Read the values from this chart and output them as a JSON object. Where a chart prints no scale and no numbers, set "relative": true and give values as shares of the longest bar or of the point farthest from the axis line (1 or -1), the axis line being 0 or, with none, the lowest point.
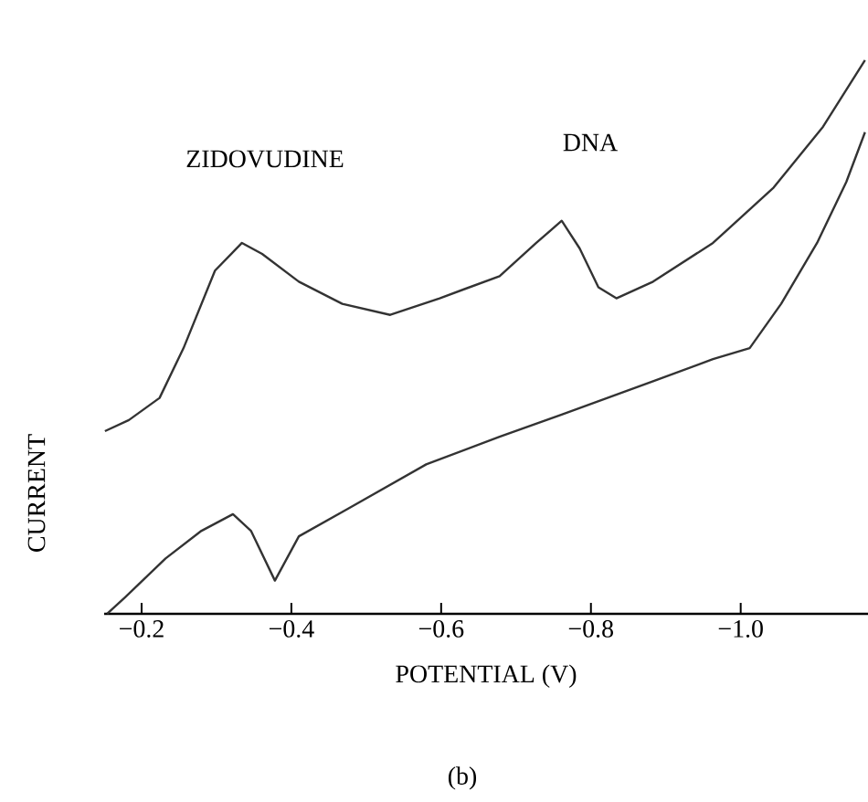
{
  "chart_data": {
    "type": "line",
    "relative": true,
    "xlabel": "POTENTIAL (V)",
    "ylabel": "CURRENT",
    "xlim": [
      -0.15,
      -1.17
    ],
    "xticks": [
      {
        "value": -0.2,
        "label": "−0.2"
      },
      {
        "value": -0.4,
        "label": "−0.4"
      },
      {
        "value": -0.6,
        "label": "−0.6"
      },
      {
        "value": -0.8,
        "label": "−0.8"
      },
      {
        "value": -1.0,
        "label": "−1.0"
      }
    ],
    "series": [
      {
        "color": "#333333",
        "x": [
          -0.151,
          -0.183,
          -0.224,
          -0.256,
          -0.298,
          -0.334,
          -0.361,
          -0.41,
          -0.468,
          -0.532,
          -0.598,
          -0.678,
          -0.727,
          -0.761,
          -0.785,
          -0.81,
          -0.834,
          -0.883,
          -0.963,
          -1.044,
          -1.11,
          -1.166
        ],
        "values": [
          0.33,
          0.35,
          0.39,
          0.48,
          0.62,
          0.67,
          0.65,
          0.6,
          0.56,
          0.54,
          0.57,
          0.61,
          0.67,
          0.71,
          0.66,
          0.59,
          0.57,
          0.6,
          0.67,
          0.77,
          0.88,
          1.0
        ]
      },
      {
        "color": "#333333",
        "x": [
          -0.154,
          -0.178,
          -0.232,
          -0.28,
          -0.322,
          -0.346,
          -0.378,
          -0.41,
          -0.476,
          -0.58,
          -0.678,
          -0.761,
          -0.883,
          -0.963,
          -1.012,
          -1.054,
          -1.102,
          -1.141,
          -1.166
        ],
        "values": [
          0.0,
          0.03,
          0.1,
          0.15,
          0.18,
          0.15,
          0.06,
          0.14,
          0.19,
          0.27,
          0.32,
          0.36,
          0.42,
          0.46,
          0.48,
          0.56,
          0.67,
          0.78,
          0.87
        ]
      }
    ],
    "annotations": [
      "ZIDOVUDINE",
      "DNA",
      "(b)"
    ]
  }
}
